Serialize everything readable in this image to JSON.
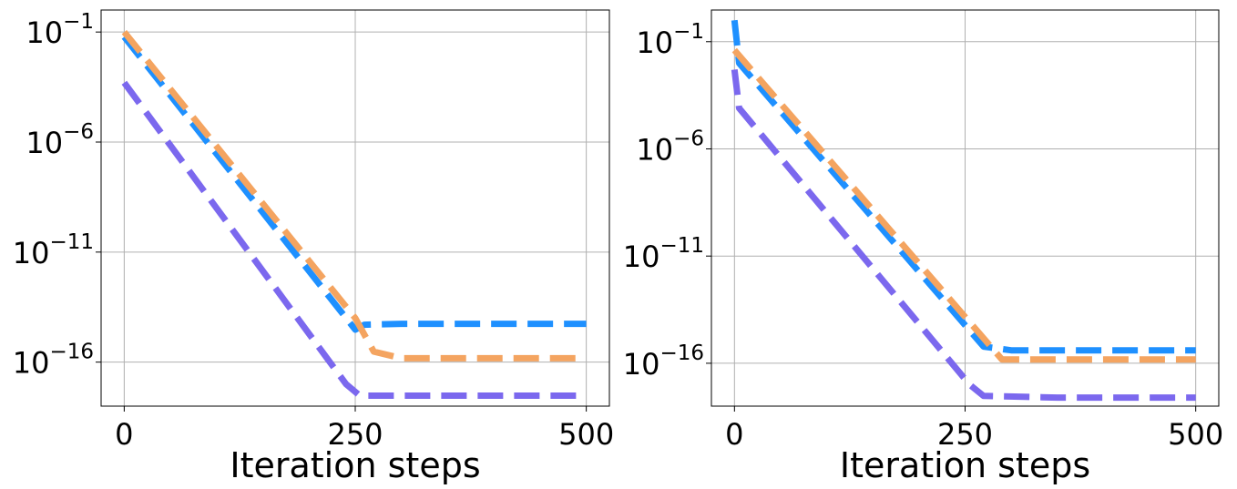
{
  "chart_data": [
    {
      "type": "line",
      "title": "",
      "xlabel": "Iteration steps",
      "ylabel": "",
      "yscale": "log",
      "xlim": [
        -25,
        525
      ],
      "ylim": [
        1e-18,
        1.0
      ],
      "xticks": [
        0,
        250,
        500
      ],
      "xtick_labels": [
        "0",
        "250",
        "500"
      ],
      "yticks": [
        1e-16,
        1e-11,
        1e-06,
        0.1
      ],
      "ytick_labels": [
        {
          "base": "10",
          "exp": "−16"
        },
        {
          "base": "10",
          "exp": "−11"
        },
        {
          "base": "10",
          "exp": "−6"
        },
        {
          "base": "10",
          "exp": "−1"
        }
      ],
      "grid": true,
      "line_style": "dashed",
      "series": [
        {
          "color": "#1e90ff",
          "x": [
            0,
            250,
            260,
            300,
            400,
            500
          ],
          "y": [
            0.06,
            3e-15,
            5e-15,
            5.5e-15,
            5.5e-15,
            5.5e-15
          ]
        },
        {
          "color": "#f4a460",
          "x": [
            0,
            250,
            270,
            300,
            400,
            500
          ],
          "y": [
            0.1,
            1e-14,
            3e-16,
            1.5e-16,
            1.5e-16,
            1.5e-16
          ]
        },
        {
          "color": "#7b68ee",
          "x": [
            0,
            240,
            255,
            300,
            400,
            500
          ],
          "y": [
            0.0005,
            1e-17,
            3e-18,
            3e-18,
            3e-18,
            3e-18
          ]
        }
      ]
    },
    {
      "type": "line",
      "title": "",
      "xlabel": "Iteration steps",
      "ylabel": "",
      "yscale": "log",
      "xlim": [
        -25,
        525
      ],
      "ylim": [
        1e-18,
        3.0
      ],
      "xticks": [
        0,
        250,
        500
      ],
      "xtick_labels": [
        "0",
        "250",
        "500"
      ],
      "yticks": [
        1e-16,
        1e-11,
        1e-06,
        0.1
      ],
      "ytick_labels": [
        {
          "base": "10",
          "exp": "−16"
        },
        {
          "base": "10",
          "exp": "−11"
        },
        {
          "base": "10",
          "exp": "−6"
        },
        {
          "base": "10",
          "exp": "−1"
        }
      ],
      "grid": true,
      "line_style": "dashed",
      "series": [
        {
          "color": "#1e90ff",
          "x": [
            0,
            5,
            270,
            300,
            400,
            500
          ],
          "y": [
            1.0,
            0.01,
            6e-16,
            4e-16,
            4e-16,
            4e-16
          ]
        },
        {
          "color": "#f4a460",
          "x": [
            0,
            290,
            300,
            400,
            500
          ],
          "y": [
            0.04,
            1.5e-16,
            1.5e-16,
            1.5e-16,
            1.5e-16
          ]
        },
        {
          "color": "#7b68ee",
          "x": [
            0,
            5,
            255,
            270,
            350,
            500
          ],
          "y": [
            0.005,
            8e-05,
            1e-17,
            3e-18,
            2.5e-18,
            2.5e-18
          ]
        }
      ]
    }
  ]
}
